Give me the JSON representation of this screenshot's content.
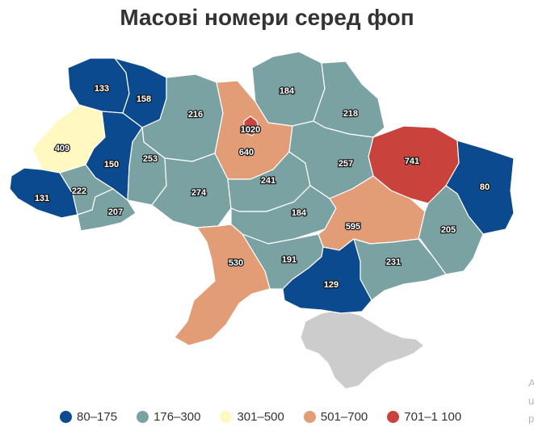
{
  "title": "Масові номери серед фоп",
  "colors": {
    "c1": "#0b4a8f",
    "c2": "#7aa2a3",
    "c3": "#fff9c1",
    "c4": "#e29c76",
    "c5": "#c9423b",
    "crimea": "#cccccc"
  },
  "legend": [
    {
      "label": "80–175",
      "color": "#0b4a8f"
    },
    {
      "label": "176–300",
      "color": "#7aa2a3"
    },
    {
      "label": "301–500",
      "color": "#fff9c1"
    },
    {
      "label": "501–700",
      "color": "#e29c76"
    },
    {
      "label": "701–1 100",
      "color": "#c9423b"
    }
  ],
  "regions": [
    {
      "id": "volyn",
      "value": "133"
    },
    {
      "id": "rivne",
      "value": "158"
    },
    {
      "id": "zhytomyr",
      "value": "216"
    },
    {
      "id": "kyiv-oblast",
      "value": "640"
    },
    {
      "id": "kyiv-city",
      "value": "1020"
    },
    {
      "id": "chernihiv",
      "value": "184"
    },
    {
      "id": "sumy",
      "value": "218"
    },
    {
      "id": "kharkiv",
      "value": "741"
    },
    {
      "id": "luhansk",
      "value": "80"
    },
    {
      "id": "donetsk",
      "value": "205"
    },
    {
      "id": "lviv",
      "value": "409"
    },
    {
      "id": "ternopil",
      "value": "150"
    },
    {
      "id": "khmelnytskyi",
      "value": "253"
    },
    {
      "id": "vinnytsia",
      "value": "274"
    },
    {
      "id": "cherkasy",
      "value": "241"
    },
    {
      "id": "poltava",
      "value": "257"
    },
    {
      "id": "zakarpattia",
      "value": "131"
    },
    {
      "id": "ivano-frankivsk",
      "value": "222"
    },
    {
      "id": "chernivtsi",
      "value": "207"
    },
    {
      "id": "kirovohrad",
      "value": "184"
    },
    {
      "id": "dnipropetrovsk",
      "value": "595"
    },
    {
      "id": "zaporizhzhia",
      "value": "231"
    },
    {
      "id": "mykolaiv",
      "value": "191"
    },
    {
      "id": "odesa",
      "value": "530"
    },
    {
      "id": "kherson",
      "value": "129"
    },
    {
      "id": "crimea",
      "value": ""
    }
  ],
  "edge_letters": [
    "A",
    "u",
    "p"
  ]
}
